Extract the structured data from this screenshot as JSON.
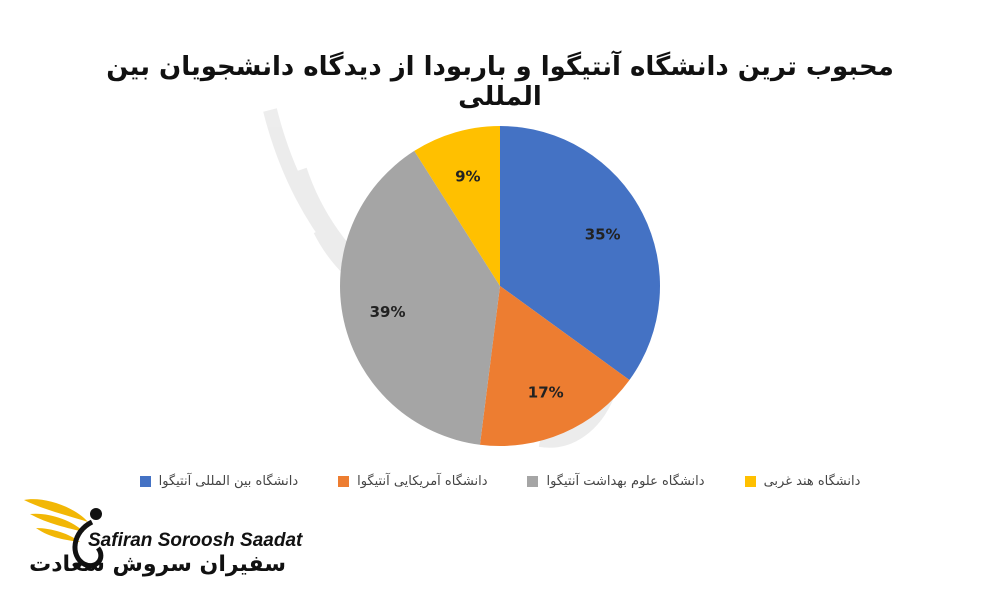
{
  "chart_data": {
    "type": "pie",
    "title": "محبوب ترین دانشگاه آنتیگوا و باربودا از دیدگاه دانشجویان بین المللی",
    "slices": [
      {
        "label": "دانشگاه بین المللی آنتیگوا",
        "value": 35,
        "display": "35%",
        "color": "#4472C4"
      },
      {
        "label": "دانشگاه آمریکایی آنتیگوا",
        "value": 17,
        "display": "17%",
        "color": "#ED7D31"
      },
      {
        "label": "دانشگاه علوم بهداشت آنتیگوا",
        "value": 39,
        "display": "39%",
        "color": "#A5A5A5"
      },
      {
        "label": "دانشگاه هند غربی",
        "value": 9,
        "display": "9%",
        "color": "#FFC000"
      }
    ],
    "legend_position": "bottom"
  },
  "brand": {
    "name_en": "Safiran Soroosh Saadat",
    "name_fa": "سفیران سروش سعادت",
    "accent_color": "#F2B705"
  }
}
